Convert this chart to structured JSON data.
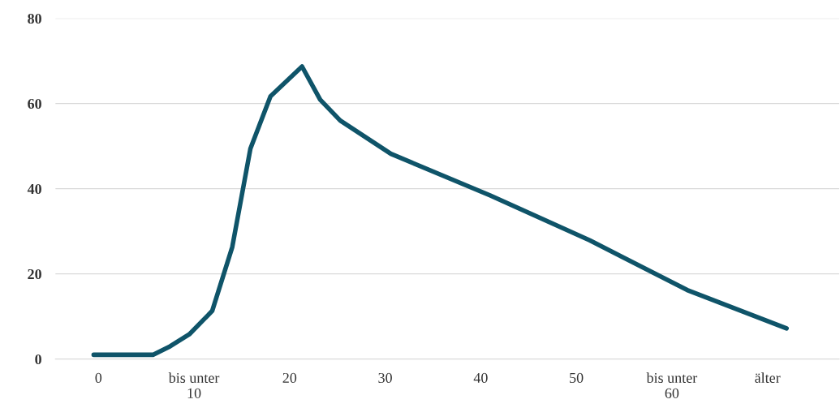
{
  "chart_data": {
    "type": "line",
    "x": [
      -0.5,
      5.7,
      7.5,
      9.5,
      11.9,
      14,
      15.9,
      18,
      21.3,
      23.2,
      25.3,
      30.6,
      41,
      51.4,
      61.6,
      72
    ],
    "series": [
      {
        "color": "#0f5469",
        "values": [
          1,
          1,
          3,
          5.8,
          11.3,
          26.3,
          49.4,
          61.7,
          68.7,
          60.9,
          56,
          48.2,
          38.4,
          27.9,
          16.2,
          7.2
        ]
      }
    ],
    "xlim": [
      -4.5,
      77.5
    ],
    "xticks": [
      {
        "value": 0,
        "label": "0"
      },
      {
        "value": 10,
        "label": "bis unter\n10"
      },
      {
        "value": 20,
        "label": "20"
      },
      {
        "value": 30,
        "label": "30"
      },
      {
        "value": 40,
        "label": "40"
      },
      {
        "value": 50,
        "label": "50"
      },
      {
        "value": 60,
        "label": "bis unter\n60"
      },
      {
        "value": 70,
        "label": "älter"
      }
    ],
    "ylim": [
      0,
      80
    ],
    "yticks": [
      0,
      20,
      40,
      60,
      80
    ],
    "grid": "y",
    "marker": "none",
    "line_style": "solid",
    "legend": false
  }
}
